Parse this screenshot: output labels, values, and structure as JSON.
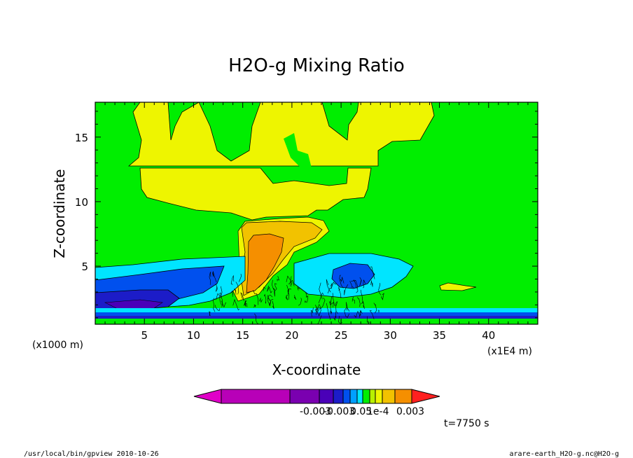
{
  "chart_data": {
    "type": "heatmap",
    "title": "H2O-g Mixing Ratio",
    "xlabel": "X-coordinate",
    "ylabel": "Z-coordinate",
    "x_unit_left": "(x1000 m)",
    "x_unit_right": "(x1E4 m)",
    "xlim": [
      0,
      45
    ],
    "ylim": [
      0.5,
      17.7
    ],
    "x_ticks": [
      5,
      10,
      15,
      20,
      25,
      30,
      35,
      40
    ],
    "y_ticks": [
      5,
      10,
      15
    ],
    "colorbar_labels": [
      "-0.003",
      "-0.003",
      "0.05",
      "1e-4",
      "0.003"
    ],
    "time_label": "t=7750 s",
    "colors": {
      "background_field": "#00ee00",
      "yellow": "#eef500",
      "light_orange": "#f2c200",
      "orange": "#f58f00",
      "cyan": "#00e5ff",
      "blue": "#0050ee",
      "dark_blue": "#1c1cc8",
      "purple": "#4a00b8"
    }
  },
  "footer": {
    "left": "/usr/local/bin/gpview  2010-10-26",
    "right": "arare-earth_H2O-g.nc@H2O-g"
  }
}
